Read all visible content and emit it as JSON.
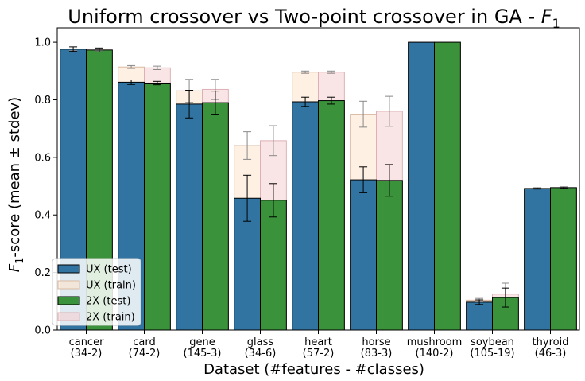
{
  "chart_data": {
    "type": "bar",
    "title": "Uniform crossover vs Two-point crossover in GA - ",
    "title_math": "F",
    "title_sub": "1",
    "ylabel_prefix": "F",
    "ylabel_sub": "1",
    "ylabel_rest": "-score (mean ± stdev)",
    "xlabel": "Dataset (#features - #classes)",
    "ylim": [
      0,
      1.05
    ],
    "yticks": [
      "0.0",
      "0.2",
      "0.4",
      "0.6",
      "0.8",
      "1.0"
    ],
    "categories": [
      {
        "name": "cancer",
        "sub": "(34-2)"
      },
      {
        "name": "card",
        "sub": "(74-2)"
      },
      {
        "name": "gene",
        "sub": "(145-3)"
      },
      {
        "name": "glass",
        "sub": "(34-6)"
      },
      {
        "name": "heart",
        "sub": "(57-2)"
      },
      {
        "name": "horse",
        "sub": "(83-3)"
      },
      {
        "name": "mushroom",
        "sub": "(140-2)"
      },
      {
        "name": "soybean",
        "sub": "(105-19)"
      },
      {
        "name": "thyroid",
        "sub": "(46-3)"
      }
    ],
    "series": [
      {
        "name": "UX (test)",
        "color": "#3274a1",
        "values": [
          0.976,
          0.861,
          0.785,
          0.458,
          0.793,
          0.522,
          1.0,
          0.097,
          0.492
        ],
        "err": [
          0.008,
          0.008,
          0.048,
          0.08,
          0.016,
          0.045,
          0.0,
          0.008,
          0.002
        ]
      },
      {
        "name": "UX (train)",
        "color": "#fde3cc",
        "values": [
          0.974,
          0.914,
          0.831,
          0.641,
          0.896,
          0.75,
          1.0,
          0.104,
          0.492
        ],
        "err": [
          0.003,
          0.005,
          0.04,
          0.048,
          0.004,
          0.045,
          0.0,
          0.006,
          0.001
        ]
      },
      {
        "name": "2X (test)",
        "color": "#3a923a",
        "values": [
          0.973,
          0.858,
          0.79,
          0.451,
          0.797,
          0.52,
          1.0,
          0.113,
          0.495
        ],
        "err": [
          0.007,
          0.006,
          0.04,
          0.058,
          0.012,
          0.055,
          0.0,
          0.033,
          0.002
        ]
      },
      {
        "name": "2X (train)",
        "color": "#f5cfd2",
        "values": [
          0.973,
          0.911,
          0.836,
          0.658,
          0.896,
          0.76,
          1.0,
          0.125,
          0.494
        ],
        "err": [
          0.003,
          0.006,
          0.035,
          0.052,
          0.004,
          0.052,
          0.0,
          0.038,
          0.001
        ]
      }
    ],
    "legend_placement": "lower-left",
    "grid": false
  }
}
